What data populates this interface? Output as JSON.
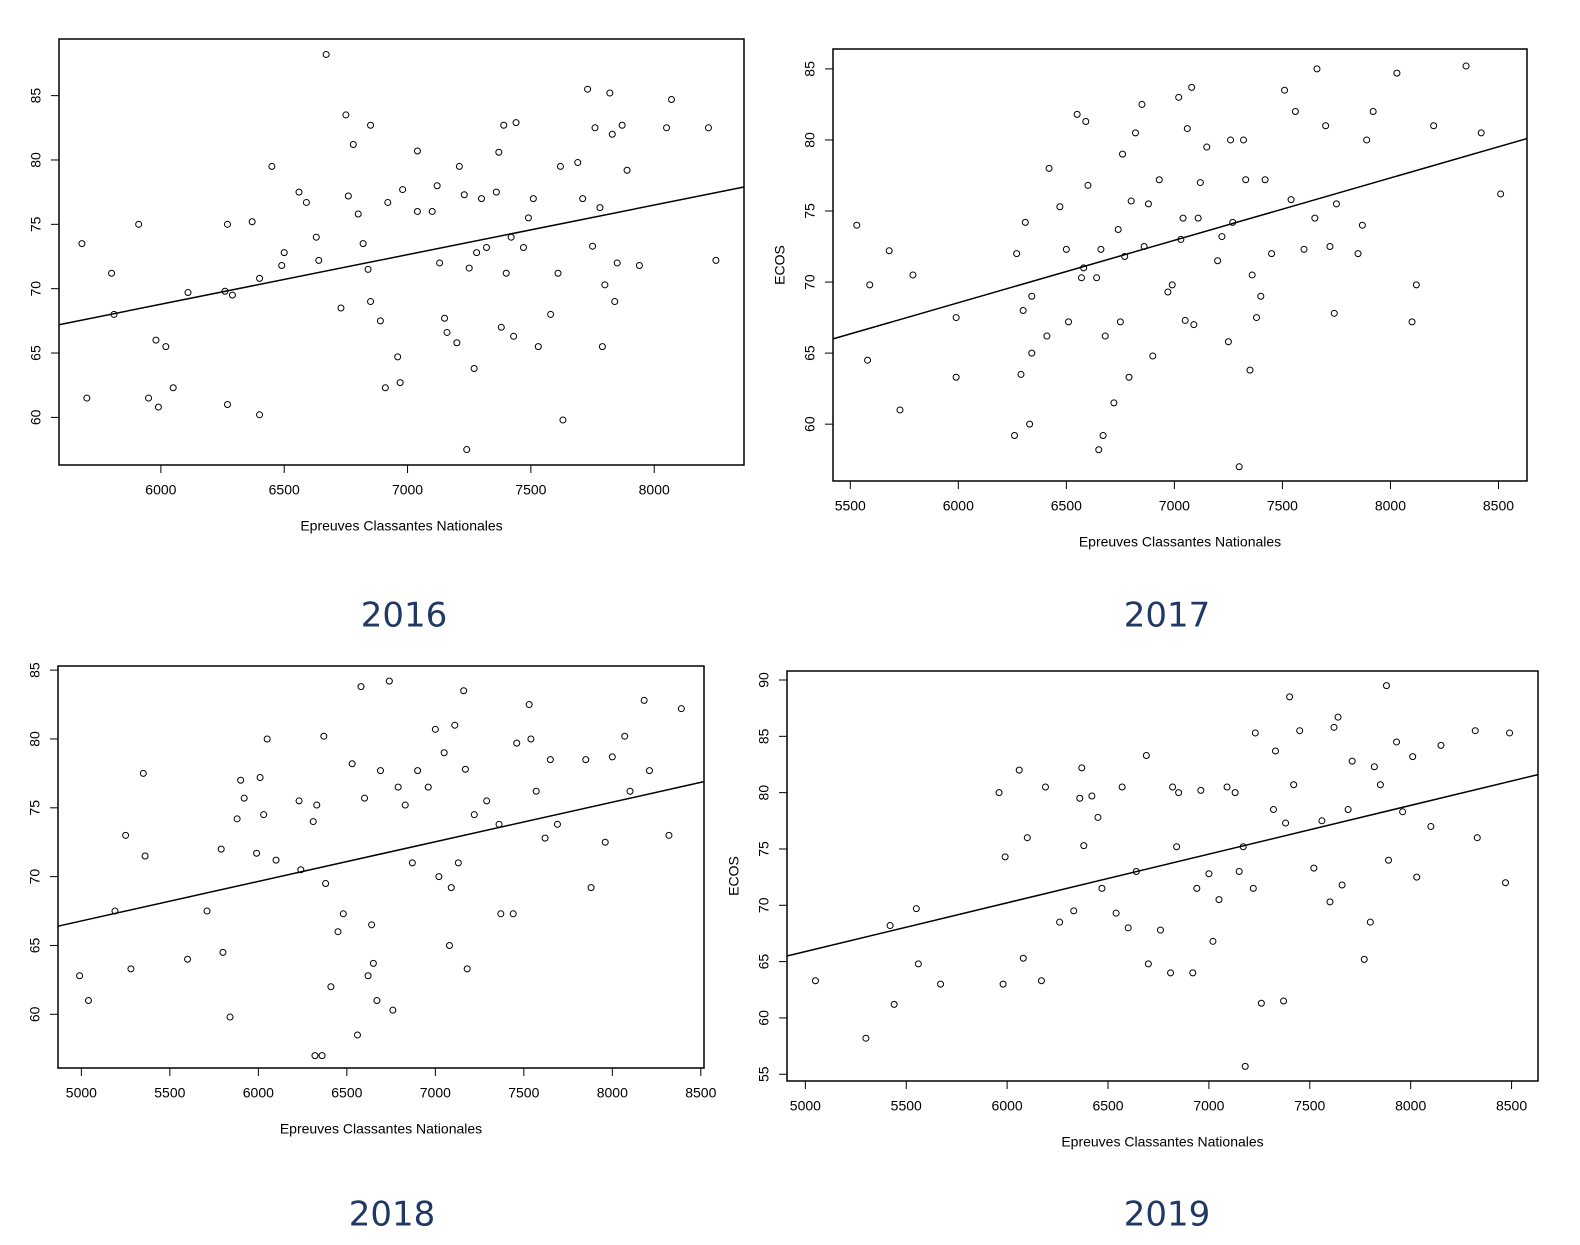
{
  "chart_data": [
    {
      "type": "scatter",
      "caption": "2016",
      "x_label": "Epreuves Classantes Nationales",
      "xlim": [
        5587,
        8364
      ],
      "ylim": [
        56.3,
        89.4
      ],
      "xticks": [
        6000,
        6500,
        7000,
        7500,
        8000
      ],
      "yticks": [
        60,
        65,
        70,
        75,
        80,
        85
      ],
      "x": [
        5680,
        5700,
        5800,
        5810,
        5910,
        5950,
        5980,
        5990,
        6020,
        6050,
        6110,
        6260,
        6270,
        6270,
        6290,
        6370,
        6400,
        6400,
        6450,
        6490,
        6500,
        6560,
        6590,
        6630,
        6640,
        6670,
        6730,
        6750,
        6760,
        6780,
        6800,
        6820,
        6840,
        6850,
        6850,
        6890,
        6910,
        6920,
        6960,
        6970,
        6980,
        7040,
        7040,
        7100,
        7120,
        7130,
        7150,
        7160,
        7200,
        7210,
        7230,
        7240,
        7250,
        7270,
        7280,
        7300,
        7320,
        7360,
        7370,
        7380,
        7390,
        7400,
        7420,
        7430,
        7440,
        7470,
        7490,
        7510,
        7530,
        7580,
        7610,
        7630,
        7620,
        7690,
        7710,
        7730,
        7750,
        7760,
        7780,
        7790,
        7800,
        7820,
        7830,
        7840,
        7850,
        7870,
        7890,
        7940,
        8050,
        8070,
        8220,
        8250
      ],
      "values": [
        73.5,
        61.5,
        71.2,
        68,
        75,
        61.5,
        66,
        60.8,
        65.5,
        62.3,
        69.7,
        69.8,
        61,
        75,
        69.5,
        75.2,
        60.2,
        70.8,
        79.5,
        71.8,
        72.8,
        77.5,
        76.7,
        74,
        72.2,
        88.2,
        68.5,
        83.5,
        77.2,
        81.2,
        75.8,
        73.5,
        71.5,
        82.7,
        69,
        67.5,
        62.3,
        76.7,
        64.7,
        62.7,
        77.7,
        80.7,
        76,
        76,
        78,
        72,
        67.7,
        66.6,
        65.8,
        79.5,
        77.3,
        57.5,
        71.6,
        63.8,
        72.8,
        77,
        73.2,
        77.5,
        80.6,
        67,
        82.7,
        71.2,
        74,
        66.3,
        82.9,
        73.2,
        75.5,
        77,
        65.5,
        68,
        71.2,
        59.8,
        79.5,
        79.8,
        77,
        85.5,
        73.3,
        82.5,
        76.3,
        65.5,
        70.3,
        85.2,
        82,
        69,
        72,
        82.7,
        79.2,
        71.8,
        82.5,
        84.7,
        82.5,
        72.2
      ],
      "fit_line": {
        "x": [
          5587,
          8364
        ],
        "values": [
          67.2,
          77.9
        ]
      }
    },
    {
      "type": "scatter",
      "caption": "2017",
      "x_label": "Epreuves Classantes Nationales",
      "y_label": "ECOS",
      "xlim": [
        5420,
        8632
      ],
      "ylim": [
        56.0,
        86.4
      ],
      "xticks": [
        5500,
        6000,
        6500,
        7000,
        7500,
        8000,
        8500
      ],
      "yticks": [
        60,
        65,
        70,
        75,
        80,
        85
      ],
      "x": [
        5530,
        5580,
        5590,
        5680,
        5730,
        5790,
        5990,
        5990,
        6260,
        6270,
        6290,
        6300,
        6310,
        6330,
        6340,
        6340,
        6410,
        6420,
        6470,
        6500,
        6510,
        6550,
        6570,
        6580,
        6590,
        6600,
        6640,
        6650,
        6660,
        6670,
        6680,
        6720,
        6740,
        6750,
        6760,
        6770,
        6790,
        6800,
        6820,
        6850,
        6860,
        6880,
        6900,
        6930,
        6970,
        6990,
        7020,
        7030,
        7040,
        7050,
        7060,
        7080,
        7090,
        7110,
        7120,
        7150,
        7200,
        7220,
        7250,
        7260,
        7270,
        7300,
        7320,
        7330,
        7350,
        7360,
        7380,
        7400,
        7420,
        7450,
        7510,
        7540,
        7560,
        7600,
        7650,
        7660,
        7700,
        7720,
        7740,
        7750,
        7850,
        7870,
        7890,
        7920,
        8030,
        8100,
        8120,
        8200,
        8350,
        8420,
        8510
      ],
      "values": [
        74,
        64.5,
        69.8,
        72.2,
        61,
        70.5,
        67.5,
        63.3,
        59.2,
        72,
        63.5,
        68,
        74.2,
        60,
        65,
        69,
        66.2,
        78,
        75.3,
        72.3,
        67.2,
        81.8,
        70.3,
        71,
        81.3,
        76.8,
        70.3,
        58.2,
        72.3,
        59.2,
        66.2,
        61.5,
        73.7,
        67.2,
        79,
        71.8,
        63.3,
        75.7,
        80.5,
        82.5,
        72.5,
        75.5,
        64.8,
        77.2,
        69.3,
        69.8,
        83,
        73,
        74.5,
        67.3,
        80.8,
        83.7,
        67,
        74.5,
        77,
        79.5,
        71.5,
        73.2,
        65.8,
        80,
        74.2,
        57,
        80,
        77.2,
        63.8,
        70.5,
        67.5,
        69,
        77.2,
        72,
        83.5,
        75.8,
        82,
        72.3,
        74.5,
        85,
        81,
        72.5,
        67.8,
        75.5,
        72,
        74,
        80,
        82,
        84.7,
        67.2,
        69.8,
        81,
        85.2,
        80.5,
        76.2
      ],
      "fit_line": {
        "x": [
          5420,
          8632
        ],
        "values": [
          66.0,
          80.1
        ]
      }
    },
    {
      "type": "scatter",
      "caption": "2018",
      "x_label": "Epreuves Classantes Nationales",
      "xlim": [
        4868,
        8518
      ],
      "ylim": [
        56.1,
        85.3
      ],
      "xticks": [
        5000,
        5500,
        6000,
        6500,
        7000,
        7500,
        8000,
        8500
      ],
      "yticks": [
        60,
        65,
        70,
        75,
        80,
        85
      ],
      "x": [
        4990,
        5040,
        5190,
        5250,
        5280,
        5350,
        5360,
        5600,
        5710,
        5790,
        5800,
        5840,
        5880,
        5900,
        5920,
        5990,
        6010,
        6030,
        6050,
        6100,
        6230,
        6240,
        6310,
        6320,
        6330,
        6360,
        6370,
        6380,
        6410,
        6450,
        6480,
        6530,
        6560,
        6580,
        6600,
        6620,
        6640,
        6650,
        6670,
        6690,
        6740,
        6760,
        6790,
        6830,
        6870,
        6900,
        6960,
        7000,
        7020,
        7050,
        7080,
        7090,
        7110,
        7130,
        7160,
        7170,
        7180,
        7220,
        7290,
        7360,
        7370,
        7440,
        7460,
        7530,
        7540,
        7570,
        7620,
        7650,
        7690,
        7850,
        7880,
        7960,
        8000,
        8070,
        8100,
        8180,
        8210,
        8320,
        8390
      ],
      "values": [
        62.8,
        61,
        67.5,
        73,
        63.3,
        77.5,
        71.5,
        64,
        67.5,
        72,
        64.5,
        59.8,
        74.2,
        77,
        75.7,
        71.7,
        77.2,
        74.5,
        80,
        71.2,
        75.5,
        70.5,
        74,
        57,
        75.2,
        57,
        80.2,
        69.5,
        62,
        66,
        67.3,
        78.2,
        58.5,
        83.8,
        75.7,
        62.8,
        66.5,
        63.7,
        61,
        77.7,
        84.2,
        60.3,
        76.5,
        75.2,
        71,
        77.7,
        76.5,
        80.7,
        70,
        79,
        65,
        69.2,
        81,
        71,
        83.5,
        77.8,
        63.3,
        74.5,
        75.5,
        73.8,
        67.3,
        67.3,
        79.7,
        82.5,
        80,
        76.2,
        72.8,
        78.5,
        73.8,
        78.5,
        69.2,
        72.5,
        78.7,
        80.2,
        76.2,
        82.8,
        77.7,
        73,
        82.2
      ],
      "fit_line": {
        "x": [
          4868,
          8518
        ],
        "values": [
          66.4,
          76.9
        ]
      }
    },
    {
      "type": "scatter",
      "caption": "2019",
      "x_label": "Epreuves Classantes Nationales",
      "y_label": "ECOS",
      "xlim": [
        4909,
        8631
      ],
      "ylim": [
        54.4,
        90.8
      ],
      "xticks": [
        5000,
        5500,
        6000,
        6500,
        7000,
        7500,
        8000,
        8500
      ],
      "yticks": [
        55,
        60,
        65,
        70,
        75,
        80,
        85,
        90
      ],
      "x": [
        5050,
        5300,
        5420,
        5440,
        5550,
        5560,
        5670,
        5960,
        5980,
        5990,
        6060,
        6080,
        6100,
        6170,
        6190,
        6260,
        6330,
        6360,
        6370,
        6380,
        6420,
        6450,
        6470,
        6540,
        6570,
        6600,
        6640,
        6690,
        6700,
        6760,
        6810,
        6820,
        6840,
        6850,
        6920,
        6940,
        6960,
        7000,
        7020,
        7050,
        7090,
        7130,
        7150,
        7170,
        7180,
        7220,
        7230,
        7260,
        7320,
        7330,
        7370,
        7380,
        7400,
        7420,
        7450,
        7520,
        7560,
        7600,
        7620,
        7640,
        7660,
        7690,
        7710,
        7770,
        7800,
        7820,
        7850,
        7880,
        7890,
        7930,
        7960,
        8010,
        8030,
        8100,
        8150,
        8320,
        8330,
        8470,
        8490
      ],
      "values": [
        63.3,
        58.2,
        68.2,
        61.2,
        69.7,
        64.8,
        63,
        80,
        63,
        74.3,
        82,
        65.3,
        76,
        63.3,
        80.5,
        68.5,
        69.5,
        79.5,
        82.2,
        75.3,
        79.7,
        77.8,
        71.5,
        69.3,
        80.5,
        68,
        73,
        83.3,
        64.8,
        67.8,
        64,
        80.5,
        75.2,
        80,
        64,
        71.5,
        80.2,
        72.8,
        66.8,
        70.5,
        80.5,
        80,
        73,
        75.2,
        55.7,
        71.5,
        85.3,
        61.3,
        78.5,
        83.7,
        61.5,
        77.3,
        88.5,
        80.7,
        85.5,
        73.3,
        77.5,
        70.3,
        85.8,
        86.7,
        71.8,
        78.5,
        82.8,
        65.2,
        68.5,
        82.3,
        80.7,
        89.5,
        74,
        84.5,
        78.3,
        83.2,
        72.5,
        77,
        84.2,
        85.5,
        76,
        72,
        85.3
      ],
      "fit_line": {
        "x": [
          4909,
          8631
        ],
        "values": [
          65.5,
          81.6
        ]
      }
    }
  ]
}
